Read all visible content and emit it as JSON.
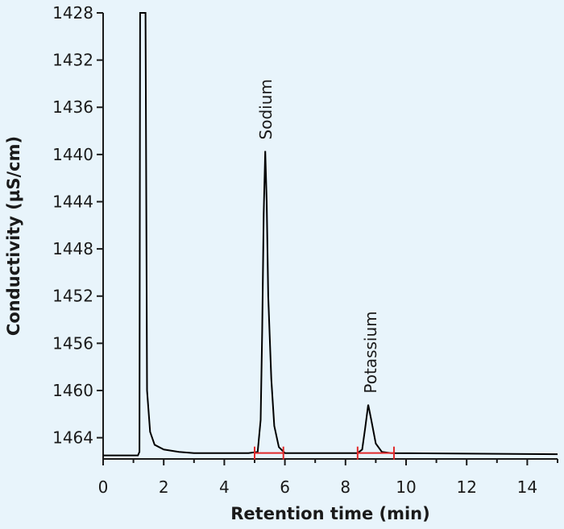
{
  "chart_data": {
    "type": "line",
    "xlabel": "Retention time (min)",
    "ylabel": "Conductivity (µS/cm)",
    "xlim": [
      0,
      15
    ],
    "ylim": [
      1428,
      1465.8
    ],
    "y_axis_inverted": true,
    "x_ticks": [
      "0",
      "2",
      "4",
      "6",
      "8",
      "10",
      "12",
      "14"
    ],
    "y_ticks": [
      "1428",
      "1432",
      "1436",
      "1440",
      "1444",
      "1448",
      "1452",
      "1456",
      "1460",
      "1464"
    ],
    "series": [
      {
        "values": [
          [
            0,
            1465.5
          ],
          [
            1.15,
            1465.5
          ],
          [
            1.2,
            1465.2
          ],
          [
            1.22,
            1428
          ],
          [
            1.4,
            1428
          ],
          [
            1.45,
            1460
          ],
          [
            1.55,
            1463.5
          ],
          [
            1.7,
            1464.6
          ],
          [
            2.0,
            1465.0
          ],
          [
            2.5,
            1465.2
          ],
          [
            3.0,
            1465.3
          ],
          [
            4.8,
            1465.3
          ],
          [
            5.1,
            1465.2
          ],
          [
            5.2,
            1462.5
          ],
          [
            5.25,
            1455
          ],
          [
            5.3,
            1445
          ],
          [
            5.35,
            1439.7
          ],
          [
            5.4,
            1444
          ],
          [
            5.45,
            1452
          ],
          [
            5.55,
            1459
          ],
          [
            5.65,
            1463
          ],
          [
            5.8,
            1464.8
          ],
          [
            6.0,
            1465.3
          ],
          [
            8.4,
            1465.3
          ],
          [
            8.55,
            1465.0
          ],
          [
            8.65,
            1463.2
          ],
          [
            8.75,
            1461.2
          ],
          [
            8.85,
            1462.5
          ],
          [
            9.0,
            1464.5
          ],
          [
            9.2,
            1465.2
          ],
          [
            9.5,
            1465.3
          ],
          [
            15,
            1465.4
          ]
        ]
      }
    ],
    "annotations": [
      {
        "text": "Sodium",
        "x": 5.35,
        "y": 1439.7
      },
      {
        "text": "Potassium",
        "x": 8.8,
        "y": 1461.2
      }
    ],
    "integration_markers": [
      {
        "start": 5.0,
        "end": 5.95
      },
      {
        "start": 8.4,
        "end": 9.6
      }
    ],
    "colors": {
      "background": "#e8f4fb",
      "trace": "#000000",
      "integration": "#e0292b",
      "axis": "#1a1a1a"
    }
  }
}
